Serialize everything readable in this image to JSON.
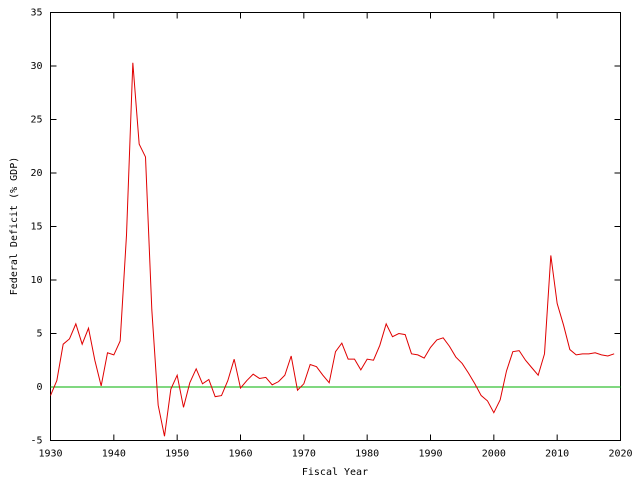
{
  "chart_data": {
    "type": "line",
    "xlabel": "Fiscal Year",
    "ylabel": "Federal Deficit (% GDP)",
    "x": [
      1930,
      1931,
      1932,
      1933,
      1934,
      1935,
      1936,
      1937,
      1938,
      1939,
      1940,
      1941,
      1942,
      1943,
      1944,
      1945,
      1946,
      1947,
      1948,
      1949,
      1950,
      1951,
      1952,
      1953,
      1954,
      1955,
      1956,
      1957,
      1958,
      1959,
      1960,
      1961,
      1962,
      1963,
      1964,
      1965,
      1966,
      1967,
      1968,
      1969,
      1970,
      1971,
      1972,
      1973,
      1974,
      1975,
      1976,
      1977,
      1978,
      1979,
      1980,
      1981,
      1982,
      1983,
      1984,
      1985,
      1986,
      1987,
      1988,
      1989,
      1990,
      1991,
      1992,
      1993,
      1994,
      1995,
      1996,
      1997,
      1998,
      1999,
      2000,
      2001,
      2002,
      2003,
      2004,
      2005,
      2006,
      2007,
      2008,
      2009,
      2010,
      2011,
      2012,
      2013,
      2014,
      2015,
      2016,
      2017,
      2018,
      2019
    ],
    "values": [
      -0.8,
      0.6,
      4.0,
      4.5,
      5.9,
      4.0,
      5.5,
      2.5,
      0.1,
      3.2,
      3.0,
      4.3,
      14.2,
      30.3,
      22.7,
      21.5,
      7.2,
      -1.7,
      -4.6,
      -0.2,
      1.1,
      -1.9,
      0.4,
      1.7,
      0.3,
      0.7,
      -0.9,
      -0.8,
      0.6,
      2.6,
      -0.1,
      0.6,
      1.2,
      0.8,
      0.9,
      0.2,
      0.5,
      1.1,
      2.9,
      -0.3,
      0.3,
      2.1,
      1.9,
      1.1,
      0.4,
      3.3,
      4.1,
      2.6,
      2.6,
      1.6,
      2.6,
      2.5,
      3.9,
      5.9,
      4.7,
      5.0,
      4.9,
      3.1,
      3.0,
      2.7,
      3.7,
      4.4,
      4.6,
      3.8,
      2.8,
      2.2,
      1.3,
      0.3,
      -0.8,
      -1.3,
      -2.4,
      -1.2,
      1.5,
      3.3,
      3.4,
      2.5,
      1.8,
      1.1,
      3.1,
      12.3,
      7.8,
      5.8,
      3.5,
      3.0,
      3.1,
      3.1,
      3.2,
      3.0,
      2.9,
      3.1
    ],
    "color": "#e00000",
    "zeroaxis_color": "#00b000",
    "xlim": [
      1930,
      2020
    ],
    "xticks": [
      1930,
      1940,
      1950,
      1960,
      1970,
      1980,
      1990,
      2000,
      2010,
      2020
    ],
    "ylim": [
      -5,
      35
    ],
    "yticks": [
      -5,
      0,
      5,
      10,
      15,
      20,
      25,
      30,
      35
    ]
  }
}
